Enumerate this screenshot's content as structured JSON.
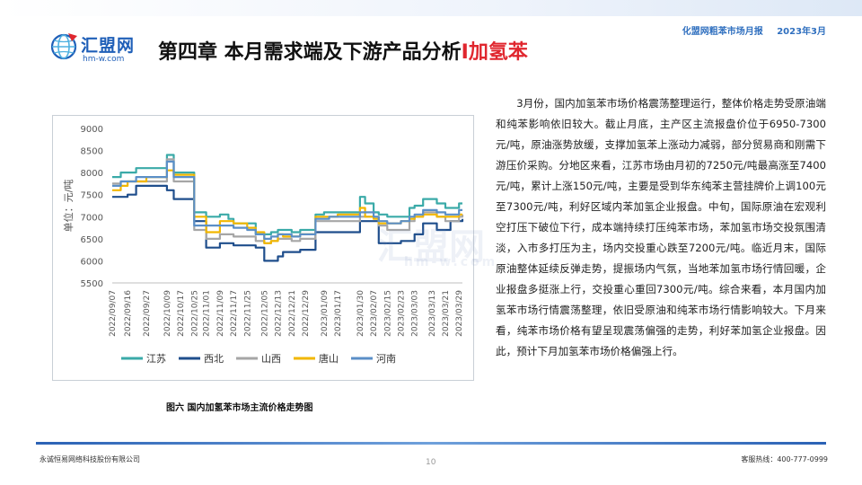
{
  "header": {
    "report_name": "化盟网粗苯市场月报",
    "report_date": "2023年3月"
  },
  "logo": {
    "brand": "汇盟网",
    "url_text": "hm-w.com",
    "icon": "globe-logo-icon"
  },
  "title": {
    "main": "第四章 本月需求端及下游产品分析",
    "separator": "I",
    "accent": "加氢苯",
    "accent_color": "#e0262e"
  },
  "figure_caption": "图六 国内加氢苯市场主流价格走势图",
  "body_text": "3月份，国内加氢苯市场价格震荡整理运行，整体价格走势受原油端和纯苯影响依旧较大。截止月底，主产区主流报盘价位于6950-7300元/吨，原油涨势放缓，支撑加氢苯上涨动力减弱，部分贸易商和刚需下游压价采购。分地区来看，江苏市场由月初的7250元/吨最高涨至7400元/吨，累计上涨150元/吨，主要是受到华东纯苯主营挂牌价上调100元至7300元/吨，利好区域内苯加氢企业报盘。中旬，国际原油在宏观利空打压下破位下行，成本端持续打压纯苯市场，苯加氢市场交投氛围清淡，入市多打压为主，场内交投重心跌至7200元/吨。临近月末，国际原油整体延续反弹走势，提振场内气氛，当地苯加氢市场行情回暖，企业报盘多挺涨上行，交投重心重回7300元/吨。综合来看，本月国内加氢苯市场行情震荡整理，依旧受原油和纯苯市场行情影响较大。下月来看，纯苯市场价格有望呈现震荡偏强的走势，利好苯加氢企业报盘。因此，预计下月加氢苯市场价格偏强上行。",
  "footer": {
    "company": "永诚恒易网络科技股份有限公司",
    "page": "10",
    "hotline": "客服热线：400-777-0999"
  },
  "chart_data": {
    "type": "line",
    "title": "",
    "xlabel": "",
    "ylabel": "单位：元/吨",
    "ylim": [
      5500,
      9000
    ],
    "yticks": [
      5500,
      6000,
      6500,
      7000,
      7500,
      8000,
      8500,
      9000
    ],
    "grid": false,
    "legend_position": "bottom",
    "x_tick_labels": [
      "2022/09/07",
      "2022/09/16",
      "2022/09/27",
      "2022/10/09",
      "2022/10/17",
      "2022/10/25",
      "2022/11/01",
      "2022/11/09",
      "2022/11/17",
      "2022/11/25",
      "2022/12/05",
      "2022/12/13",
      "2022/12/21",
      "2022/12/29",
      "2023/01/09",
      "2023/01/17",
      "2023/01/30",
      "2023/02/07",
      "2023/02/15",
      "2023/02/23",
      "2023/03/03",
      "2023/03/13",
      "2023/03/21",
      "2023/03/29"
    ],
    "x": [
      "2022/09/07",
      "2022/09/12",
      "2022/09/16",
      "2022/09/21",
      "2022/09/27",
      "2022/10/09",
      "2022/10/13",
      "2022/10/17",
      "2022/10/21",
      "2022/10/25",
      "2022/10/28",
      "2022/11/01",
      "2022/11/04",
      "2022/11/09",
      "2022/11/14",
      "2022/11/17",
      "2022/11/22",
      "2022/11/25",
      "2022/11/30",
      "2022/12/05",
      "2022/12/09",
      "2022/12/13",
      "2022/12/16",
      "2022/12/21",
      "2022/12/26",
      "2022/12/29",
      "2023/01/04",
      "2023/01/09",
      "2023/01/12",
      "2023/01/17",
      "2023/01/20",
      "2023/01/30",
      "2023/02/02",
      "2023/02/07",
      "2023/02/10",
      "2023/02/15",
      "2023/02/20",
      "2023/02/23",
      "2023/02/28",
      "2023/03/03",
      "2023/03/08",
      "2023/03/13",
      "2023/03/16",
      "2023/03/21",
      "2023/03/24",
      "2023/03/29",
      "2023/03/31"
    ],
    "series": [
      {
        "name": "江苏",
        "color": "#3aaaa8",
        "values": [
          7900,
          8000,
          8000,
          8100,
          8100,
          8400,
          8000,
          8000,
          8000,
          7100,
          7100,
          7000,
          7000,
          7050,
          6950,
          6850,
          6850,
          6850,
          6600,
          6600,
          6650,
          6700,
          6700,
          6650,
          6700,
          6700,
          7050,
          7100,
          7100,
          7100,
          7100,
          7450,
          7300,
          7100,
          7050,
          7000,
          7000,
          7000,
          7200,
          7250,
          7400,
          7400,
          7300,
          7200,
          7200,
          7300,
          7300
        ]
      },
      {
        "name": "西北",
        "color": "#1f4e8c",
        "values": [
          7450,
          7450,
          7500,
          7700,
          7700,
          7600,
          7400,
          7400,
          7400,
          6900,
          6900,
          6300,
          6300,
          6400,
          6400,
          6350,
          6350,
          6350,
          6300,
          6000,
          6000,
          6100,
          6200,
          6200,
          6250,
          6250,
          6650,
          6650,
          6650,
          6650,
          6650,
          6900,
          6900,
          6900,
          6400,
          6400,
          6400,
          6450,
          6450,
          6600,
          6850,
          6850,
          6700,
          6700,
          6900,
          6900,
          6950
        ]
      },
      {
        "name": "山西",
        "color": "#a6a6a6",
        "values": [
          7750,
          7800,
          7800,
          7800,
          7800,
          8300,
          7800,
          7800,
          7800,
          6700,
          6700,
          6500,
          6500,
          6600,
          6600,
          6550,
          6550,
          6550,
          6450,
          6400,
          6450,
          6500,
          6500,
          6450,
          6500,
          6500,
          6900,
          6900,
          6900,
          6900,
          6900,
          7000,
          7000,
          7000,
          6800,
          6700,
          6700,
          6700,
          6900,
          7000,
          7100,
          7100,
          7000,
          6900,
          6900,
          7000,
          7050
        ]
      },
      {
        "name": "唐山",
        "color": "#f2b700",
        "values": [
          7600,
          7700,
          7800,
          7800,
          7900,
          8050,
          7950,
          7950,
          7950,
          7000,
          7000,
          6650,
          6650,
          6900,
          6900,
          6850,
          6850,
          6750,
          6650,
          6400,
          6450,
          6600,
          6550,
          6550,
          6600,
          6600,
          7000,
          7000,
          7000,
          7050,
          7050,
          7200,
          7000,
          6950,
          6850,
          6850,
          6850,
          6900,
          6950,
          7000,
          7050,
          7050,
          7000,
          7000,
          7000,
          7050,
          7050
        ]
      },
      {
        "name": "河南",
        "color": "#5b8fc7",
        "values": [
          7700,
          7800,
          7800,
          7900,
          7900,
          8250,
          7900,
          7900,
          7900,
          6800,
          6800,
          6800,
          6800,
          6800,
          6800,
          6750,
          6750,
          6700,
          6600,
          6500,
          6550,
          6600,
          6600,
          6550,
          6600,
          6600,
          6950,
          6950,
          7000,
          7000,
          7000,
          7100,
          7100,
          7000,
          6900,
          6850,
          6850,
          6900,
          7000,
          7050,
          7150,
          7150,
          7100,
          7050,
          7050,
          7150,
          7150
        ]
      }
    ]
  },
  "watermark": {
    "text": "汇盟网",
    "sub": "hm-w.com"
  }
}
